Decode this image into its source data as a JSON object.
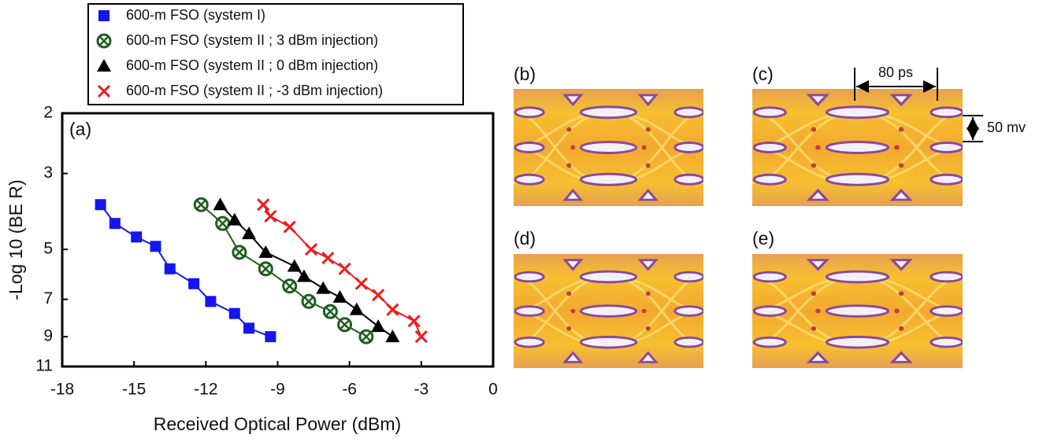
{
  "chart_data": {
    "type": "line",
    "panel_label": "(a)",
    "x_label": "Received  Optical  Power  (dBm)",
    "y_label": "-Log 10 (BE R)",
    "xlim": [
      -18,
      0
    ],
    "xticks": [
      -18,
      -15,
      -12,
      -9,
      -6,
      -3,
      0
    ],
    "ylim": [
      2,
      11
    ],
    "yticks": [
      2,
      3,
      5,
      7,
      9,
      11
    ],
    "y_scale": "log",
    "y_reversed": true,
    "series": [
      {
        "name": "600-m FSO (system I)",
        "color": "#1515ee",
        "marker": "square",
        "x": [
          -16.4,
          -15.8,
          -14.9,
          -14.1,
          -13.5,
          -12.5,
          -11.8,
          -10.8,
          -10.2,
          -9.3
        ],
        "values": [
          3.7,
          4.2,
          4.6,
          4.9,
          5.7,
          6.3,
          7.1,
          7.7,
          8.5,
          9.0
        ]
      },
      {
        "name": "600-m FSO (system II ; 3 dBm injection)",
        "color": "#1c5e1c",
        "marker": "circle-x",
        "x": [
          -12.2,
          -11.3,
          -10.6,
          -9.5,
          -8.5,
          -7.7,
          -6.8,
          -6.2,
          -5.3
        ],
        "values": [
          3.7,
          4.2,
          5.1,
          5.7,
          6.4,
          7.1,
          7.6,
          8.3,
          9.0
        ]
      },
      {
        "name": "600-m FSO (system II ; 0 dBm injection)",
        "color": "#000000",
        "marker": "triangle",
        "x": [
          -11.4,
          -10.8,
          -10.2,
          -9.5,
          -8.3,
          -7.9,
          -7.1,
          -6.4,
          -5.7,
          -4.8,
          -4.2
        ],
        "values": [
          3.7,
          4.1,
          4.5,
          5.1,
          5.6,
          6.0,
          6.5,
          6.9,
          7.5,
          8.4,
          9.0
        ]
      },
      {
        "name": "600-m FSO (system II ; -3 dBm injection)",
        "color": "#ee1c1c",
        "marker": "x",
        "x": [
          -9.6,
          -9.3,
          -8.5,
          -7.6,
          -6.9,
          -6.2,
          -5.5,
          -4.8,
          -4.2,
          -3.3,
          -3.0
        ],
        "values": [
          3.7,
          4.0,
          4.3,
          5.0,
          5.3,
          5.7,
          6.3,
          6.8,
          7.5,
          8.1,
          9.0
        ]
      }
    ]
  },
  "eye_diagrams": {
    "labels": [
      "(b)",
      "(c)",
      "(d)",
      "(e)"
    ],
    "time_span": "80 ps",
    "amplitude_span": "50 mv"
  }
}
